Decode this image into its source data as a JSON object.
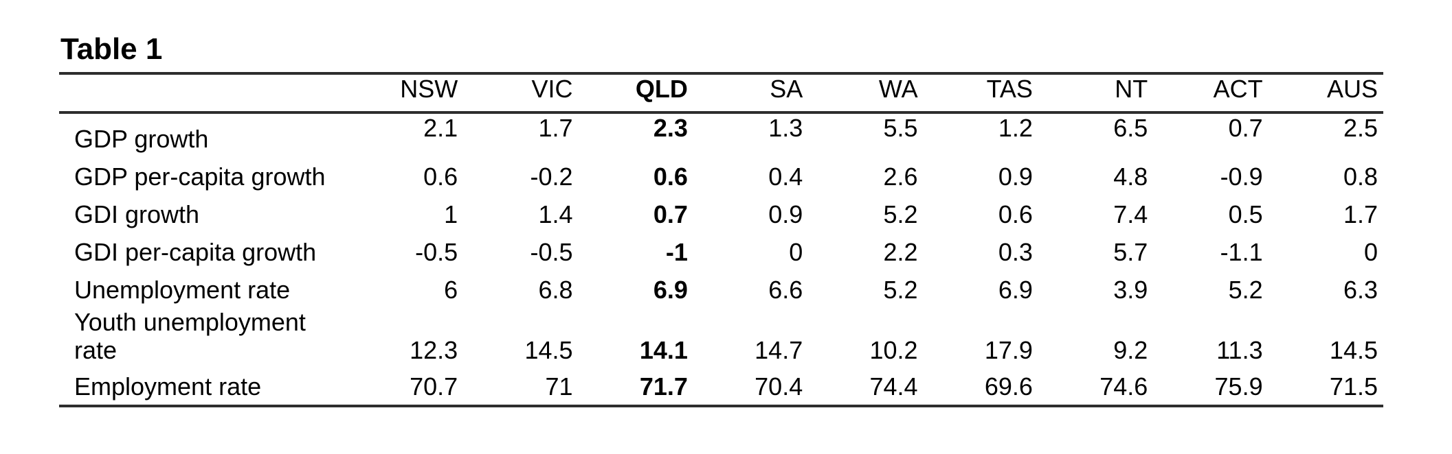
{
  "page": {
    "background_color": "#ffffff",
    "text_color": "#000000",
    "rule_color": "#2d2d2d"
  },
  "table": {
    "title": "Table 1",
    "columns": [
      "NSW",
      "VIC",
      "QLD",
      "SA",
      "WA",
      "TAS",
      "NT",
      "ACT",
      "AUS"
    ],
    "emphasis_column": "QLD",
    "emphasis_column_index": 2,
    "rows": [
      {
        "label": "GDP growth",
        "values": [
          "2.1",
          "1.7",
          "2.3",
          "1.3",
          "5.5",
          "1.2",
          "6.5",
          "0.7",
          "2.5"
        ]
      },
      {
        "label": "GDP per-capita growth",
        "values": [
          "0.6",
          "-0.2",
          "0.6",
          "0.4",
          "2.6",
          "0.9",
          "4.8",
          "-0.9",
          "0.8"
        ]
      },
      {
        "label": "GDI growth",
        "values": [
          "1",
          "1.4",
          "0.7",
          "0.9",
          "5.2",
          "0.6",
          "7.4",
          "0.5",
          "1.7"
        ]
      },
      {
        "label": "GDI per-capita growth",
        "values": [
          "-0.5",
          "-0.5",
          "-1",
          "0",
          "2.2",
          "0.3",
          "5.7",
          "-1.1",
          "0"
        ]
      },
      {
        "label": "Unemployment rate",
        "values": [
          "6",
          "6.8",
          "6.9",
          "6.6",
          "5.2",
          "6.9",
          "3.9",
          "5.2",
          "6.3"
        ]
      },
      {
        "label": "Youth unemployment\nrate",
        "values": [
          "12.3",
          "14.5",
          "14.1",
          "14.7",
          "10.2",
          "17.9",
          "9.2",
          "11.3",
          "14.5"
        ]
      },
      {
        "label": "Employment rate",
        "values": [
          "70.7",
          "71",
          "71.7",
          "70.4",
          "74.4",
          "69.6",
          "74.6",
          "75.9",
          "71.5"
        ]
      }
    ]
  }
}
